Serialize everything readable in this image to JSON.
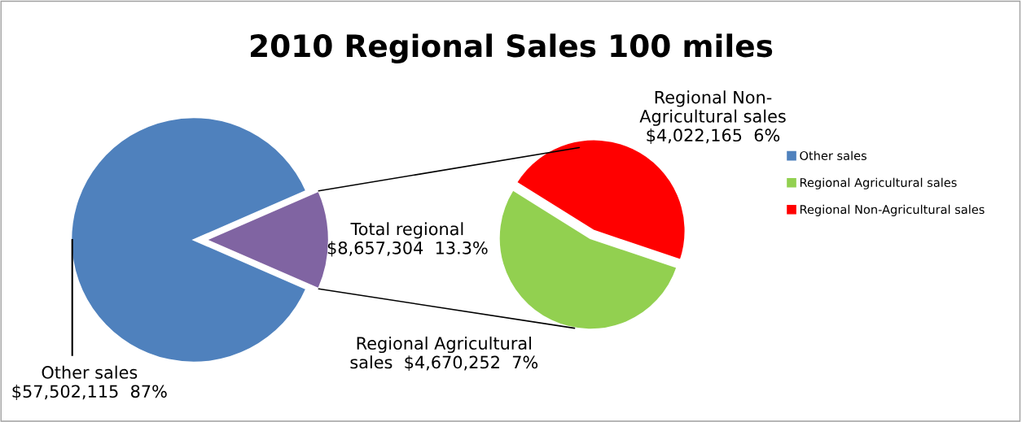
{
  "chart_data": [
    {
      "type": "pie",
      "title": "2010 Regional Sales 100 miles",
      "categories": [
        "Other sales",
        "Total regional"
      ],
      "values": [
        57502115,
        8657304
      ],
      "colors": [
        "#4f81bd",
        "#8064a2"
      ],
      "value_labels": [
        "$57,502,115  87%",
        "$8,657,304  13.3%"
      ],
      "legend": "right"
    },
    {
      "type": "pie",
      "categories": [
        "Regional Agricultural sales",
        "Regional Non-Agricultural sales"
      ],
      "values": [
        4670252,
        4022165
      ],
      "colors": [
        "#92d050",
        "#ff0000"
      ],
      "value_labels": [
        "$4,670,252  7%",
        "$4,022,165  6%"
      ],
      "legend": "right"
    }
  ]
}
